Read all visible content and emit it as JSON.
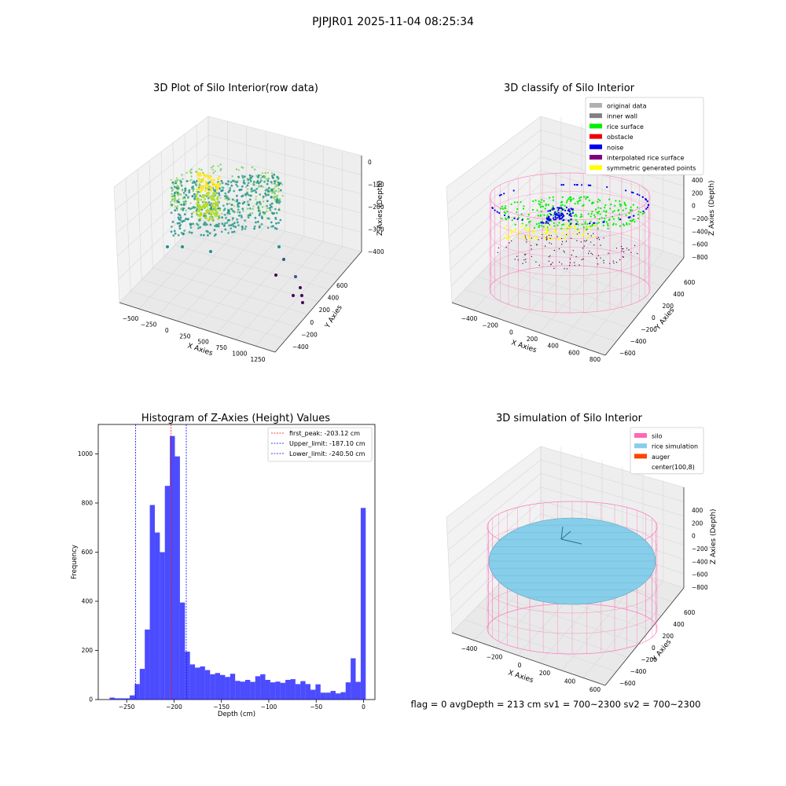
{
  "suptitle": "PJPJR01 2025-11-04 08:25:34",
  "footer": "flag = 0     avgDepth = 213 cm  sv1 = 700~2300  sv2 = 700~2300",
  "chart_data": [
    {
      "type": "scatter",
      "title": "3D Plot of Silo Interior(row data)",
      "xlabel": "X Axies",
      "ylabel": "Y Axies",
      "zlabel": "Z Axies (Depth)",
      "x_ticks": [
        "−500",
        "−250",
        "0",
        "250",
        "500",
        "750",
        "1000",
        "1250"
      ],
      "y_ticks": [
        "−400",
        "−200",
        "0",
        "200",
        "400",
        "600"
      ],
      "z_ticks": [
        "0",
        "−100",
        "−200",
        "−300",
        "−400"
      ],
      "xlim": [
        -600,
        1350
      ],
      "ylim": [
        -450,
        650
      ],
      "zlim": [
        -450,
        0
      ],
      "colormap": "viridis"
    },
    {
      "type": "scatter",
      "title": "3D classify of Silo Interior",
      "xlabel": "X Axies",
      "ylabel": "Y Axies",
      "zlabel": "Z Axies (Depth)",
      "x_ticks": [
        "−400",
        "−200",
        "0",
        "200",
        "400",
        "600",
        "800"
      ],
      "y_ticks": [
        "−600",
        "−400",
        "−200",
        "0",
        "200",
        "400",
        "600"
      ],
      "z_ticks": [
        "400",
        "200",
        "0",
        "−200",
        "−400",
        "−600",
        "−800"
      ],
      "legend": [
        {
          "label": "original data",
          "color": "#b0b0b0"
        },
        {
          "label": "inner wall",
          "color": "#808080"
        },
        {
          "label": "rice surface",
          "color": "#00ee00"
        },
        {
          "label": "obstacle",
          "color": "#ee0000"
        },
        {
          "label": "noise",
          "color": "#0000ee"
        },
        {
          "label": "interpolated rice surface",
          "color": "#800080"
        },
        {
          "label": "symmetric generated points",
          "color": "#ffff00"
        }
      ],
      "legend_position": "top-right"
    },
    {
      "type": "bar",
      "title": "Histogram of Z-Axies (Height) Values",
      "xlabel": "Depth (cm)",
      "ylabel": "Frequency",
      "xlim": [
        -280,
        12
      ],
      "ylim": [
        0,
        1120
      ],
      "x_ticks": [
        -250,
        -200,
        -150,
        -100,
        -50,
        0
      ],
      "y_ticks": [
        0,
        200,
        400,
        600,
        800,
        1000
      ],
      "bar_color": "#0000ff",
      "bin_width": 5.3,
      "bins": [
        [
          -268.0,
          8
        ],
        [
          -262.7,
          5
        ],
        [
          -257.4,
          5
        ],
        [
          -252.1,
          5
        ],
        [
          -246.8,
          17
        ],
        [
          -241.5,
          63
        ],
        [
          -236.2,
          125
        ],
        [
          -230.9,
          285
        ],
        [
          -225.6,
          792
        ],
        [
          -220.3,
          680
        ],
        [
          -215.0,
          600
        ],
        [
          -209.7,
          870
        ],
        [
          -204.4,
          1073
        ],
        [
          -199.1,
          990
        ],
        [
          -193.8,
          395
        ],
        [
          -188.5,
          195
        ],
        [
          -183.2,
          143
        ],
        [
          -177.9,
          130
        ],
        [
          -172.6,
          135
        ],
        [
          -167.3,
          120
        ],
        [
          -162.0,
          103
        ],
        [
          -156.7,
          108
        ],
        [
          -151.4,
          100
        ],
        [
          -146.1,
          92
        ],
        [
          -140.8,
          105
        ],
        [
          -135.5,
          76
        ],
        [
          -130.2,
          73
        ],
        [
          -124.9,
          80
        ],
        [
          -119.6,
          72
        ],
        [
          -114.3,
          95
        ],
        [
          -109.0,
          103
        ],
        [
          -103.7,
          80
        ],
        [
          -98.4,
          70
        ],
        [
          -93.1,
          73
        ],
        [
          -87.8,
          68
        ],
        [
          -82.5,
          80
        ],
        [
          -77.2,
          83
        ],
        [
          -71.9,
          63
        ],
        [
          -66.6,
          75
        ],
        [
          -61.3,
          63
        ],
        [
          -56.0,
          40
        ],
        [
          -50.7,
          62
        ],
        [
          -45.4,
          28
        ],
        [
          -40.1,
          28
        ],
        [
          -34.8,
          35
        ],
        [
          -29.5,
          25
        ],
        [
          -24.2,
          30
        ],
        [
          -18.9,
          70
        ],
        [
          -13.6,
          168
        ],
        [
          -8.3,
          72
        ],
        [
          -3.0,
          780
        ]
      ],
      "vlines": [
        {
          "label": "first_peak: -203.12 cm",
          "value": -203.12,
          "color": "#ff0000"
        },
        {
          "label": "Upper_limit: -187.10 cm",
          "value": -187.1,
          "color": "#0000ff"
        },
        {
          "label": "Lower_limit: -240.50 cm",
          "value": -240.5,
          "color": "#0000ff"
        }
      ],
      "legend_position": "top-right"
    },
    {
      "type": "scatter",
      "title": "3D simulation of Silo Interior",
      "xlabel": "X Axies",
      "ylabel": "Y Axies",
      "zlabel": "Z Axies (Depth)",
      "x_ticks": [
        "−400",
        "−200",
        "0",
        "200",
        "400",
        "600"
      ],
      "y_ticks": [
        "−600",
        "−400",
        "−200",
        "0",
        "200",
        "400",
        "600"
      ],
      "z_ticks": [
        "400",
        "200",
        "0",
        "−200",
        "−400",
        "−600",
        "−800"
      ],
      "legend": [
        {
          "label": "silo",
          "color": "#ff69b4"
        },
        {
          "label": "rice simulation",
          "color": "#87ceeb"
        },
        {
          "label": "auger",
          "color": "#ff4500"
        },
        {
          "label": "center(100,8)",
          "color": ""
        }
      ],
      "legend_position": "top-right"
    }
  ]
}
